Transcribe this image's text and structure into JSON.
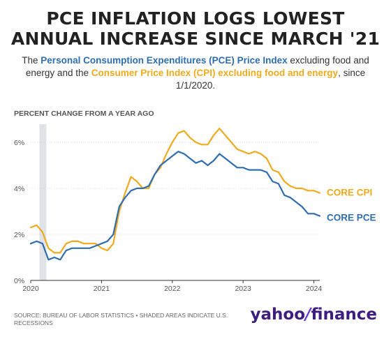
{
  "header": {
    "title_line1": "PCE INFLATION LOGS LOWEST",
    "title_line2": "ANNUAL INCREASE SINCE MARCH '21",
    "subtitle_prefix": "The ",
    "subtitle_pce": "Personal Consumption Expenditures (PCE) Price Index",
    "subtitle_mid": " excluding food and energy and the ",
    "subtitle_cpi": "Consumer Price Index (CPI) excluding food and energy",
    "subtitle_suffix": ", since 1/1/2020."
  },
  "footer": {
    "source": "SOURCE: BUREAU OF LABOR STATISTICS • SHADED AREAS INDICATE U.S. RECESSIONS",
    "brand_yahoo": "yahoo",
    "brand_slash": "/",
    "brand_finance": "finance"
  },
  "colors": {
    "cpi": "#f0aa1e",
    "pce": "#2f6db1",
    "recession": "#dfe2e6",
    "grid": "#d9d9d9"
  },
  "chart_data": {
    "type": "line",
    "title": "PCE INFLATION LOGS LOWEST ANNUAL INCREASE SINCE MARCH '21",
    "ylabel": "PERCENT CHANGE FROM A YEAR AGO",
    "xlabel": "",
    "x_ticks": [
      "2020",
      "2021",
      "2022",
      "2023",
      "2024"
    ],
    "y_ticks": [
      "0%",
      "2%",
      "4%",
      "6%"
    ],
    "ylim": [
      0,
      7
    ],
    "xlim": [
      "2020-01",
      "2024-02"
    ],
    "grid": "horizontal",
    "legend": "line-end labels",
    "recession_shading": {
      "start": "2020-02",
      "end": "2020-04"
    },
    "x": [
      "2020-01",
      "2020-02",
      "2020-03",
      "2020-04",
      "2020-05",
      "2020-06",
      "2020-07",
      "2020-08",
      "2020-09",
      "2020-10",
      "2020-11",
      "2020-12",
      "2021-01",
      "2021-02",
      "2021-03",
      "2021-04",
      "2021-05",
      "2021-06",
      "2021-07",
      "2021-08",
      "2021-09",
      "2021-10",
      "2021-11",
      "2021-12",
      "2022-01",
      "2022-02",
      "2022-03",
      "2022-04",
      "2022-05",
      "2022-06",
      "2022-07",
      "2022-08",
      "2022-09",
      "2022-10",
      "2022-11",
      "2022-12",
      "2023-01",
      "2023-02",
      "2023-03",
      "2023-04",
      "2023-05",
      "2023-06",
      "2023-07",
      "2023-08",
      "2023-09",
      "2023-10",
      "2023-11",
      "2023-12",
      "2024-01",
      "2024-02"
    ],
    "series": [
      {
        "name": "CORE CPI",
        "values": [
          2.3,
          2.4,
          2.1,
          1.4,
          1.2,
          1.2,
          1.6,
          1.7,
          1.7,
          1.6,
          1.6,
          1.6,
          1.4,
          1.3,
          1.6,
          3.0,
          3.8,
          4.5,
          4.3,
          4.0,
          4.0,
          4.6,
          4.9,
          5.5,
          6.0,
          6.4,
          6.5,
          6.2,
          6.0,
          5.9,
          5.9,
          6.3,
          6.6,
          6.3,
          6.0,
          5.7,
          5.6,
          5.5,
          5.6,
          5.5,
          5.3,
          4.8,
          4.7,
          4.3,
          4.1,
          4.0,
          4.0,
          3.9,
          3.9,
          3.8
        ]
      },
      {
        "name": "CORE PCE",
        "values": [
          1.6,
          1.7,
          1.6,
          0.9,
          1.0,
          0.9,
          1.3,
          1.4,
          1.4,
          1.4,
          1.4,
          1.5,
          1.6,
          1.7,
          2.0,
          3.2,
          3.6,
          3.9,
          4.0,
          4.0,
          4.1,
          4.6,
          5.0,
          5.2,
          5.4,
          5.6,
          5.5,
          5.3,
          5.1,
          5.2,
          5.0,
          5.2,
          5.5,
          5.3,
          5.1,
          4.9,
          4.9,
          4.8,
          4.8,
          4.8,
          4.7,
          4.3,
          4.2,
          3.7,
          3.6,
          3.4,
          3.2,
          2.9,
          2.9,
          2.8
        ]
      }
    ]
  }
}
